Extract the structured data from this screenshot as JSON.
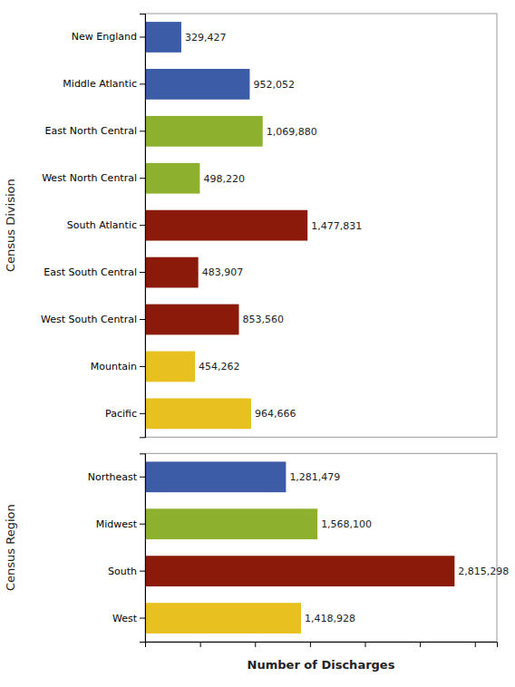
{
  "chart_data": [
    {
      "type": "bar",
      "orientation": "horizontal",
      "ylabel": "Census Division",
      "categories": [
        "New England",
        "Middle Atlantic",
        "East North Central",
        "West North Central",
        "South Atlantic",
        "East South Central",
        "West South Central",
        "Mountain",
        "Pacific"
      ],
      "values": [
        329427,
        952052,
        1069880,
        498220,
        1477831,
        483907,
        853560,
        454262,
        964666
      ],
      "value_labels": [
        "329,427",
        "952,052",
        "1,069,880",
        "498,220",
        "1,477,831",
        "483,907",
        "853,560",
        "454,262",
        "964,666"
      ],
      "colors": [
        "#3C5CA8",
        "#3C5CA8",
        "#8DB02E",
        "#8DB02E",
        "#8B1A0A",
        "#8B1A0A",
        "#8B1A0A",
        "#E8C020",
        "#E8C020"
      ],
      "xlim": [
        0,
        3200000
      ],
      "data_labels": true,
      "tick_labels": "y",
      "grid": false
    },
    {
      "type": "bar",
      "orientation": "horizontal",
      "xlabel": "Number of Discharges",
      "ylabel": "Census Region",
      "categories": [
        "Northeast",
        "Midwest",
        "South",
        "West"
      ],
      "values": [
        1281479,
        1568100,
        2815298,
        1418928
      ],
      "value_labels": [
        "1,281,479",
        "1,568,100",
        "2,815,298",
        "1,418,928"
      ],
      "colors": [
        "#3C5CA8",
        "#8DB02E",
        "#8B1A0A",
        "#E8C020"
      ],
      "xlim": [
        0,
        3200000
      ],
      "xticks": [
        0,
        500000,
        1000000,
        1500000,
        2000000,
        2500000,
        3000000
      ],
      "data_labels": true,
      "tick_labels": "y",
      "grid": false
    }
  ]
}
